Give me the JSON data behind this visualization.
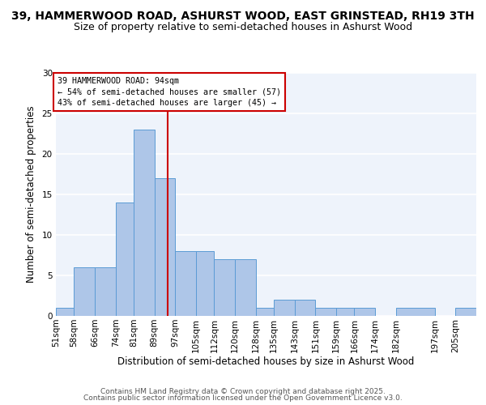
{
  "title_line1": "39, HAMMERWOOD ROAD, ASHURST WOOD, EAST GRINSTEAD, RH19 3TH",
  "title_line2": "Size of property relative to semi-detached houses in Ashurst Wood",
  "xlabel": "Distribution of semi-detached houses by size in Ashurst Wood",
  "ylabel": "Number of semi-detached properties",
  "bin_labels": [
    "51sqm",
    "58sqm",
    "66sqm",
    "74sqm",
    "81sqm",
    "89sqm",
    "97sqm",
    "105sqm",
    "112sqm",
    "120sqm",
    "128sqm",
    "135sqm",
    "143sqm",
    "151sqm",
    "159sqm",
    "166sqm",
    "174sqm",
    "182sqm",
    "197sqm",
    "205sqm"
  ],
  "bin_edges": [
    51,
    58,
    66,
    74,
    81,
    89,
    97,
    105,
    112,
    120,
    128,
    135,
    143,
    151,
    159,
    166,
    174,
    182,
    197,
    205,
    213
  ],
  "values": [
    1,
    6,
    6,
    14,
    23,
    17,
    8,
    8,
    7,
    7,
    1,
    2,
    2,
    1,
    1,
    1,
    0,
    1,
    0,
    1
  ],
  "bar_color": "#aec6e8",
  "bar_edge_color": "#5b9bd5",
  "property_value": 94,
  "vline_color": "#cc0000",
  "annotation_title": "39 HAMMERWOOD ROAD: 94sqm",
  "annotation_line1": "← 54% of semi-detached houses are smaller (57)",
  "annotation_line2": "43% of semi-detached houses are larger (45) →",
  "annotation_box_color": "#cc0000",
  "ylim": [
    0,
    30
  ],
  "yticks": [
    0,
    5,
    10,
    15,
    20,
    25,
    30
  ],
  "footer_line1": "Contains HM Land Registry data © Crown copyright and database right 2025.",
  "footer_line2": "Contains public sector information licensed under the Open Government Licence v3.0.",
  "background_color": "#eef3fb",
  "grid_color": "#ffffff",
  "title_fontsize": 10,
  "subtitle_fontsize": 9,
  "axis_label_fontsize": 8.5,
  "tick_fontsize": 7.5,
  "footer_fontsize": 6.5
}
